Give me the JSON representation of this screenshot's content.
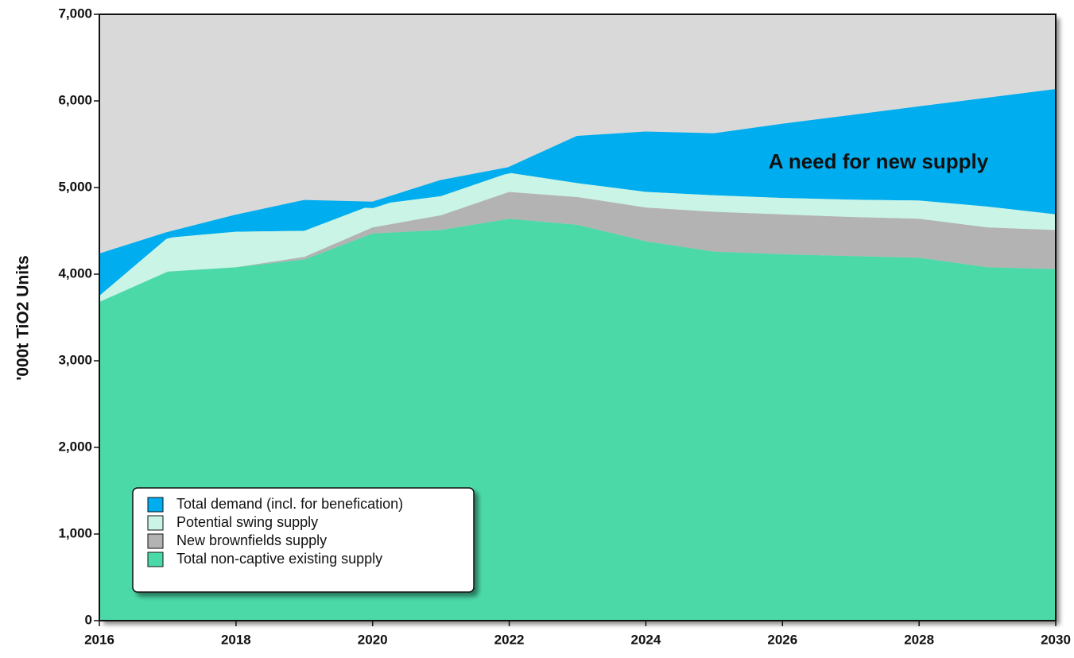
{
  "chart_data": {
    "type": "area",
    "ylabel": "'000t TiO2 Units",
    "annotation": "A need for new supply",
    "x": [
      2016,
      2017,
      2018,
      2019,
      2020,
      2021,
      2022,
      2023,
      2024,
      2025,
      2026,
      2027,
      2028,
      2029,
      2030
    ],
    "xlim": [
      2016,
      2030
    ],
    "xticks": [
      2016,
      2018,
      2020,
      2022,
      2024,
      2026,
      2028,
      2030
    ],
    "ylim": [
      0,
      7000
    ],
    "yticks": [
      0,
      {
        "value": 1000,
        "label": "1,000"
      },
      {
        "value": 2000,
        "label": "2,000"
      },
      {
        "value": 3000,
        "label": "3,000"
      },
      {
        "value": 4000,
        "label": "4,000"
      },
      {
        "value": 5000,
        "label": "5,000"
      },
      {
        "value": 6000,
        "label": "6,000"
      },
      {
        "value": 7000,
        "label": "7,000"
      }
    ],
    "legend": "lower left",
    "series": [
      {
        "name": "Total demand (incl. for benefication)",
        "color": "#00adef",
        "type": "line",
        "values": [
          4200,
          4450,
          4650,
          4820,
          4800,
          5050,
          5200,
          5560,
          5610,
          5590,
          5700,
          5800,
          5900,
          6000,
          6100
        ]
      },
      {
        "name": "Potential swing supply",
        "color": "#c9f4e6",
        "values": [
          70,
          390,
          410,
          300,
          260,
          220,
          220,
          160,
          180,
          190,
          190,
          200,
          210,
          240,
          180
        ]
      },
      {
        "name": "New brownfields supply",
        "color": "#b3b3b3",
        "values": [
          0,
          0,
          0,
          30,
          70,
          170,
          310,
          320,
          390,
          460,
          460,
          450,
          450,
          460,
          450
        ]
      },
      {
        "name": "Total non-captive existing supply",
        "color": "#4cd9a8",
        "values": [
          3680,
          4030,
          4080,
          4170,
          4470,
          4510,
          4640,
          4570,
          4380,
          4260,
          4230,
          4210,
          4190,
          4080,
          4060
        ]
      }
    ]
  }
}
